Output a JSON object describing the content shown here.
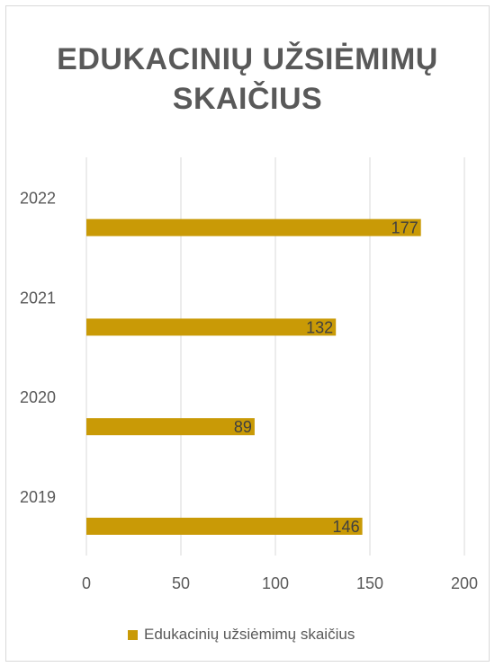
{
  "chart_data": {
    "type": "bar",
    "orientation": "horizontal",
    "title": "EDUKACINIŲ UŽSIĖMIMŲ SKAIČIUS",
    "categories": [
      "2019",
      "2020",
      "2021",
      "2022"
    ],
    "series": [
      {
        "name": "Edukacinių užsiėmimų skaičius",
        "values": [
          146,
          89,
          132,
          177
        ],
        "color": "#c99a06"
      }
    ],
    "xlim": [
      0,
      200
    ],
    "xticks": [
      0,
      50,
      100,
      150,
      200
    ],
    "grid": true,
    "legend": "bottom"
  }
}
